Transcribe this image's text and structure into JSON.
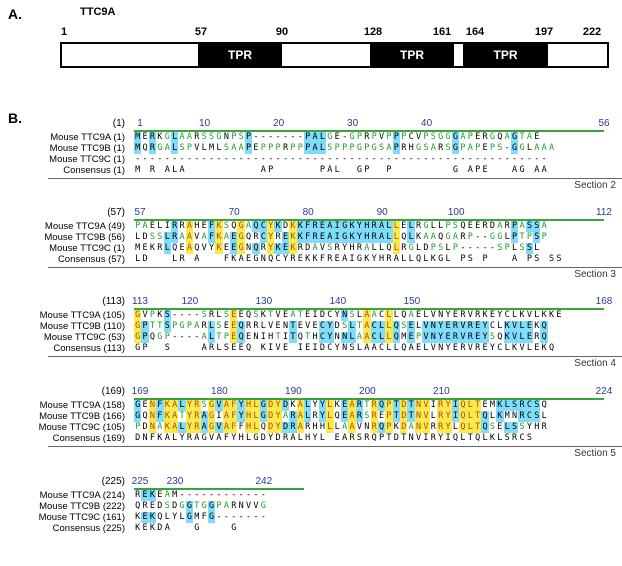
{
  "panelA": {
    "label": "A.",
    "gene": "TTC9A",
    "domain_label": "TPR",
    "positions": [
      "1",
      "57",
      "90",
      "128",
      "161",
      "164",
      "197",
      "222"
    ]
  },
  "panelB": {
    "label": "B.",
    "blocks": [
      {
        "start": "(1)",
        "ruler": [
          "1",
          "10",
          "20",
          "30",
          "40",
          "56"
        ],
        "section": "Section 2",
        "rows": [
          {
            "name": "Mouse TTC9A",
            "pos": "(1)",
            "seq": "MERKGLAARSSGNPSP-------PALGE-GPRPVPPPCVPSGGGAPERGQAGTAE"
          },
          {
            "name": "Mouse TTC9B",
            "pos": "(1)",
            "seq": "MQRGALSPVLMLSAAPEPPPRPPPALSPPPGPGSAPRHGSARSGPAPEPS-GGLAAA"
          },
          {
            "name": "Mouse TTC9C",
            "pos": "(1)",
            "seq": "--------------------------------------------------------"
          },
          {
            "name": "Consensus",
            "pos": "(1)",
            "seq": "M R ALA          AP      PAL  GP  P        G APE   AG AA"
          }
        ]
      },
      {
        "start": "(57)",
        "ruler": [
          "57",
          "70",
          "80",
          "90",
          "100",
          "112"
        ],
        "section": "Section 3",
        "rows": [
          {
            "name": "Mouse TTC9A",
            "pos": "(49)",
            "seq": "PAELIRRAHEFKSQGAQCYKDKKFREAIGKYHRALLELRGLLPSQEERDARPASSA"
          },
          {
            "name": "Mouse TTC9B",
            "pos": "(56)",
            "seq": "LDSSLRAAVAFKAEGQRCYREKKFREAIGKYHRALLQLKAAQGARP--GGLPTPSP"
          },
          {
            "name": "Mouse TTC9C",
            "pos": "(1)",
            "seq": "MEKRLQEAQVYKEEGNQRYKEKRDAVSRYHRALLQLRGLDPSLP-----SPLSSL"
          },
          {
            "name": "Consensus",
            "pos": "(57)",
            "seq": "LD   LR A   FKAEGNQCYREKKFREAIGKYHRALLQLKGL PS P   A PS SS"
          }
        ]
      },
      {
        "start": "(113)",
        "ruler": [
          "113",
          "120",
          "130",
          "140",
          "150",
          "168"
        ],
        "section": "Section 4",
        "rows": [
          {
            "name": "Mouse TTC9A",
            "pos": "(105)",
            "seq": "GVPKS----SRLSEEQSKTVEATEIDCYNSLAACLLQAELVNYERVRKEYCLKVLKKE"
          },
          {
            "name": "Mouse TTC9B",
            "pos": "(110)",
            "seq": "GPTTSPGPARLSEEQRRLVENTEVECYDSLTACLLQSELVNYERVREYCLKVLEKQ"
          },
          {
            "name": "Mouse TTC9C",
            "pos": "(53)",
            "seq": "GPQGP----ALTPEQENIHTITQTHCYNNLAACLLQMEPVNYERVREYSQKVLERQ"
          },
          {
            "name": "Consensus",
            "pos": "(113)",
            "seq": "GP  S    ARLSEEQ KIVE IEIDCYNSLAACLLQAELVNYERVREYCLKVLEKQ"
          }
        ]
      },
      {
        "start": "(169)",
        "ruler": [
          "169",
          "180",
          "190",
          "200",
          "210",
          "224"
        ],
        "section": "Section 5",
        "rows": [
          {
            "name": "Mouse TTC9A",
            "pos": "(158)",
            "seq": "GENFKALYRSGVAFYHLGDYDKALYYLKEARTRQPTDTNVIRYIQLTEMKLSRCSQ"
          },
          {
            "name": "Mouse TTC9B",
            "pos": "(166)",
            "seq": "GQNFKATYRAGIAFYHLGDYARALRYLQEARSREPTDTNVLRYIQLTQLKMNRCSL"
          },
          {
            "name": "Mouse TTC9C",
            "pos": "(105)",
            "seq": "PDNAKALYRAGVAFFHLQDYDRARHHLLAAVNRQPKDANVRRYLQLTQSELSSYHR"
          },
          {
            "name": "Consensus",
            "pos": "(169)",
            "seq": "DNFKALYRAGVAFYHLGDYDRALHYL EARSRQPTDTNVIRYIQLTQLKLSRCS"
          }
        ]
      },
      {
        "start": "(225)",
        "ruler": [
          "225",
          "230",
          "242"
        ],
        "section": "",
        "rows": [
          {
            "name": "Mouse TTC9A",
            "pos": "(214)",
            "seq": "REKEAM------------"
          },
          {
            "name": "Mouse TTC9B",
            "pos": "(222)",
            "seq": "QREDSDGGTGGPARNVVG"
          },
          {
            "name": "Mouse TTC9C",
            "pos": "(161)",
            "seq": "KEKQLYLGMFG-------"
          },
          {
            "name": "Consensus",
            "pos": "(225)",
            "seq": "KEKDA   G    G"
          }
        ]
      }
    ]
  }
}
